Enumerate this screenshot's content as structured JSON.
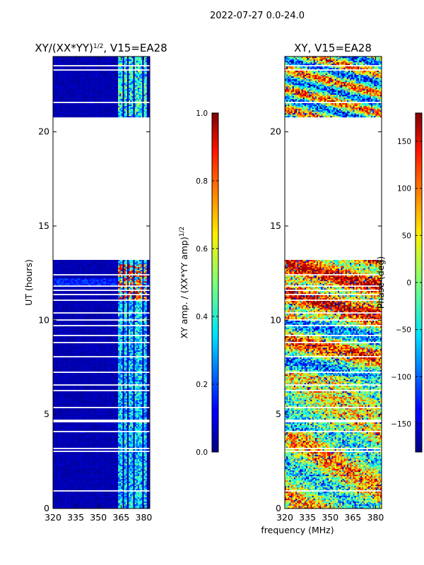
{
  "chart_data": [
    {
      "type": "heatmap",
      "suptitle": "2022-07-27 0.0-24.0",
      "title_main": "XY/(XX*YY)",
      "title_sup": "1/2",
      "title_suffix": ", V15=EA28",
      "xlabel": "frequency (MHz)",
      "ylabel": "UT (hours)",
      "xlim": [
        320,
        384
      ],
      "ylim": [
        0,
        24
      ],
      "xticks": [
        "320",
        "335",
        "350",
        "365",
        "380"
      ],
      "yticks": [
        "0",
        "5",
        "10",
        "15",
        "20"
      ],
      "data_gap_hours": [
        13.15,
        20.75
      ],
      "colorbar": {
        "label_main": "XY amp. / (XX*YY amp)",
        "label_sup": "1/2",
        "range": [
          0.0,
          1.0
        ],
        "ticks": [
          "0.0",
          "0.2",
          "0.4",
          "0.6",
          "0.8",
          "1.0"
        ],
        "colormap": "jet"
      }
    },
    {
      "type": "heatmap",
      "title": "XY, V15=EA28",
      "xlabel": "frequency (MHz)",
      "xlim": [
        320,
        384
      ],
      "ylim": [
        0,
        24
      ],
      "xticks": [
        "320",
        "335",
        "350",
        "365",
        "380"
      ],
      "yticks": [
        "0",
        "5",
        "10",
        "15",
        "20"
      ],
      "data_gap_hours": [
        13.15,
        20.75
      ],
      "colorbar": {
        "label": "Phase (deg)",
        "range": [
          -180,
          180
        ],
        "ticks": [
          "−150",
          "−100",
          "−50",
          "0",
          "50",
          "100",
          "150"
        ],
        "colormap": "jet"
      }
    }
  ]
}
